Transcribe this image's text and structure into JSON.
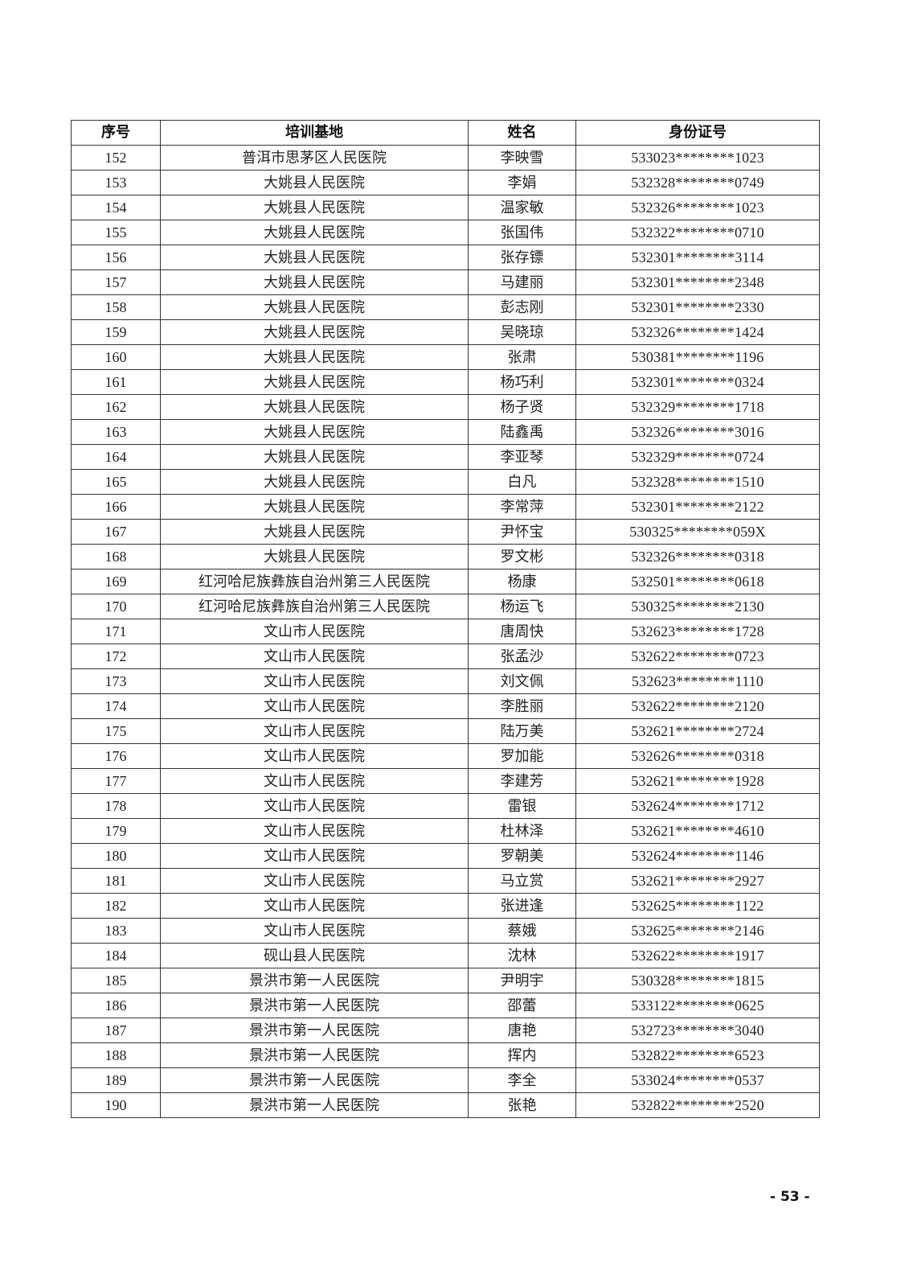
{
  "table": {
    "headers": [
      "序号",
      "培训基地",
      "姓名",
      "身份证号"
    ],
    "rows": [
      [
        "152",
        "普洱市思茅区人民医院",
        "李映雪",
        "533023********1023"
      ],
      [
        "153",
        "大姚县人民医院",
        "李娟",
        "532328********0749"
      ],
      [
        "154",
        "大姚县人民医院",
        "温家敏",
        "532326********1023"
      ],
      [
        "155",
        "大姚县人民医院",
        "张国伟",
        "532322********0710"
      ],
      [
        "156",
        "大姚县人民医院",
        "张存镖",
        "532301********3114"
      ],
      [
        "157",
        "大姚县人民医院",
        "马建丽",
        "532301********2348"
      ],
      [
        "158",
        "大姚县人民医院",
        "彭志刚",
        "532301********2330"
      ],
      [
        "159",
        "大姚县人民医院",
        "吴晓琼",
        "532326********1424"
      ],
      [
        "160",
        "大姚县人民医院",
        "张肃",
        "530381********1196"
      ],
      [
        "161",
        "大姚县人民医院",
        "杨巧利",
        "532301********0324"
      ],
      [
        "162",
        "大姚县人民医院",
        "杨子贤",
        "532329********1718"
      ],
      [
        "163",
        "大姚县人民医院",
        "陆鑫禹",
        "532326********3016"
      ],
      [
        "164",
        "大姚县人民医院",
        "李亚琴",
        "532329********0724"
      ],
      [
        "165",
        "大姚县人民医院",
        "白凡",
        "532328********1510"
      ],
      [
        "166",
        "大姚县人民医院",
        "李常萍",
        "532301********2122"
      ],
      [
        "167",
        "大姚县人民医院",
        "尹怀宝",
        "530325********059X"
      ],
      [
        "168",
        "大姚县人民医院",
        "罗文彬",
        "532326********0318"
      ],
      [
        "169",
        "红河哈尼族彝族自治州第三人民医院",
        "杨康",
        "532501********0618"
      ],
      [
        "170",
        "红河哈尼族彝族自治州第三人民医院",
        "杨运飞",
        "530325********2130"
      ],
      [
        "171",
        "文山市人民医院",
        "唐周快",
        "532623********1728"
      ],
      [
        "172",
        "文山市人民医院",
        "张孟沙",
        "532622********0723"
      ],
      [
        "173",
        "文山市人民医院",
        "刘文佩",
        "532623********1110"
      ],
      [
        "174",
        "文山市人民医院",
        "李胜丽",
        "532622********2120"
      ],
      [
        "175",
        "文山市人民医院",
        "陆万美",
        "532621********2724"
      ],
      [
        "176",
        "文山市人民医院",
        "罗加能",
        "532626********0318"
      ],
      [
        "177",
        "文山市人民医院",
        "李建芳",
        "532621********1928"
      ],
      [
        "178",
        "文山市人民医院",
        "雷银",
        "532624********1712"
      ],
      [
        "179",
        "文山市人民医院",
        "杜林泽",
        "532621********4610"
      ],
      [
        "180",
        "文山市人民医院",
        "罗朝美",
        "532624********1146"
      ],
      [
        "181",
        "文山市人民医院",
        "马立赏",
        "532621********2927"
      ],
      [
        "182",
        "文山市人民医院",
        "张进逢",
        "532625********1122"
      ],
      [
        "183",
        "文山市人民医院",
        "蔡娥",
        "532625********2146"
      ],
      [
        "184",
        "砚山县人民医院",
        "沈林",
        "532622********1917"
      ],
      [
        "185",
        "景洪市第一人民医院",
        "尹明宇",
        "530328********1815"
      ],
      [
        "186",
        "景洪市第一人民医院",
        "邵蕾",
        "533122********0625"
      ],
      [
        "187",
        "景洪市第一人民医院",
        "唐艳",
        "532723********3040"
      ],
      [
        "188",
        "景洪市第一人民医院",
        "挥内",
        "532822********6523"
      ],
      [
        "189",
        "景洪市第一人民医院",
        "李全",
        "533024********0537"
      ],
      [
        "190",
        "景洪市第一人民医院",
        "张艳",
        "532822********2520"
      ]
    ]
  },
  "footer": {
    "page_number": "- 53 -"
  }
}
